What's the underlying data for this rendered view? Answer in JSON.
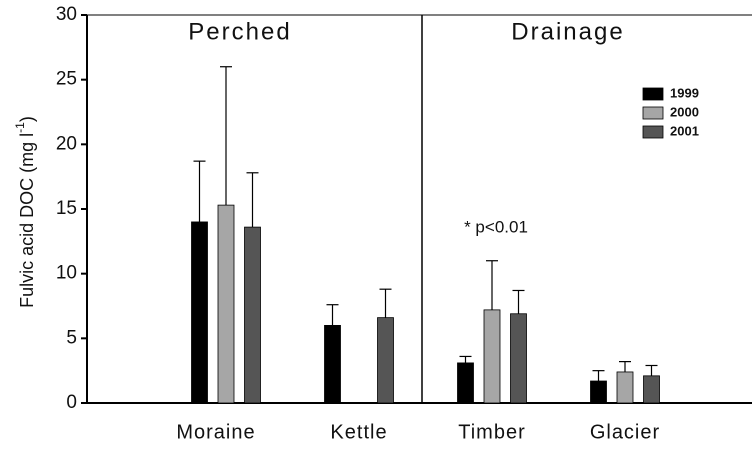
{
  "chart_data": {
    "type": "bar",
    "y_label_parts": [
      "Fulvic acid DOC (mg l",
      "-1",
      ")"
    ],
    "group_labels": [
      "Perched",
      "Drainage"
    ],
    "annotation": "* p<0.01",
    "categories": [
      "Moraine",
      "Kettle",
      "Timber",
      "Glacier"
    ],
    "series": [
      {
        "name": "1999",
        "color": "#000000",
        "values": [
          14.0,
          6.0,
          3.1,
          1.7
        ],
        "errors": [
          4.7,
          1.6,
          0.5,
          0.8
        ]
      },
      {
        "name": "2000",
        "color": "#a6a6a6",
        "values": [
          15.3,
          null,
          7.2,
          2.4
        ],
        "errors": [
          10.7,
          null,
          3.8,
          0.8
        ]
      },
      {
        "name": "2001",
        "color": "#555555",
        "values": [
          13.6,
          6.6,
          6.9,
          2.1
        ],
        "errors": [
          4.2,
          2.2,
          1.8,
          0.8
        ]
      }
    ],
    "ylim": [
      0,
      30
    ],
    "yticks": [
      0,
      5,
      10,
      15,
      20,
      25,
      30
    ],
    "legend": "upper right"
  }
}
